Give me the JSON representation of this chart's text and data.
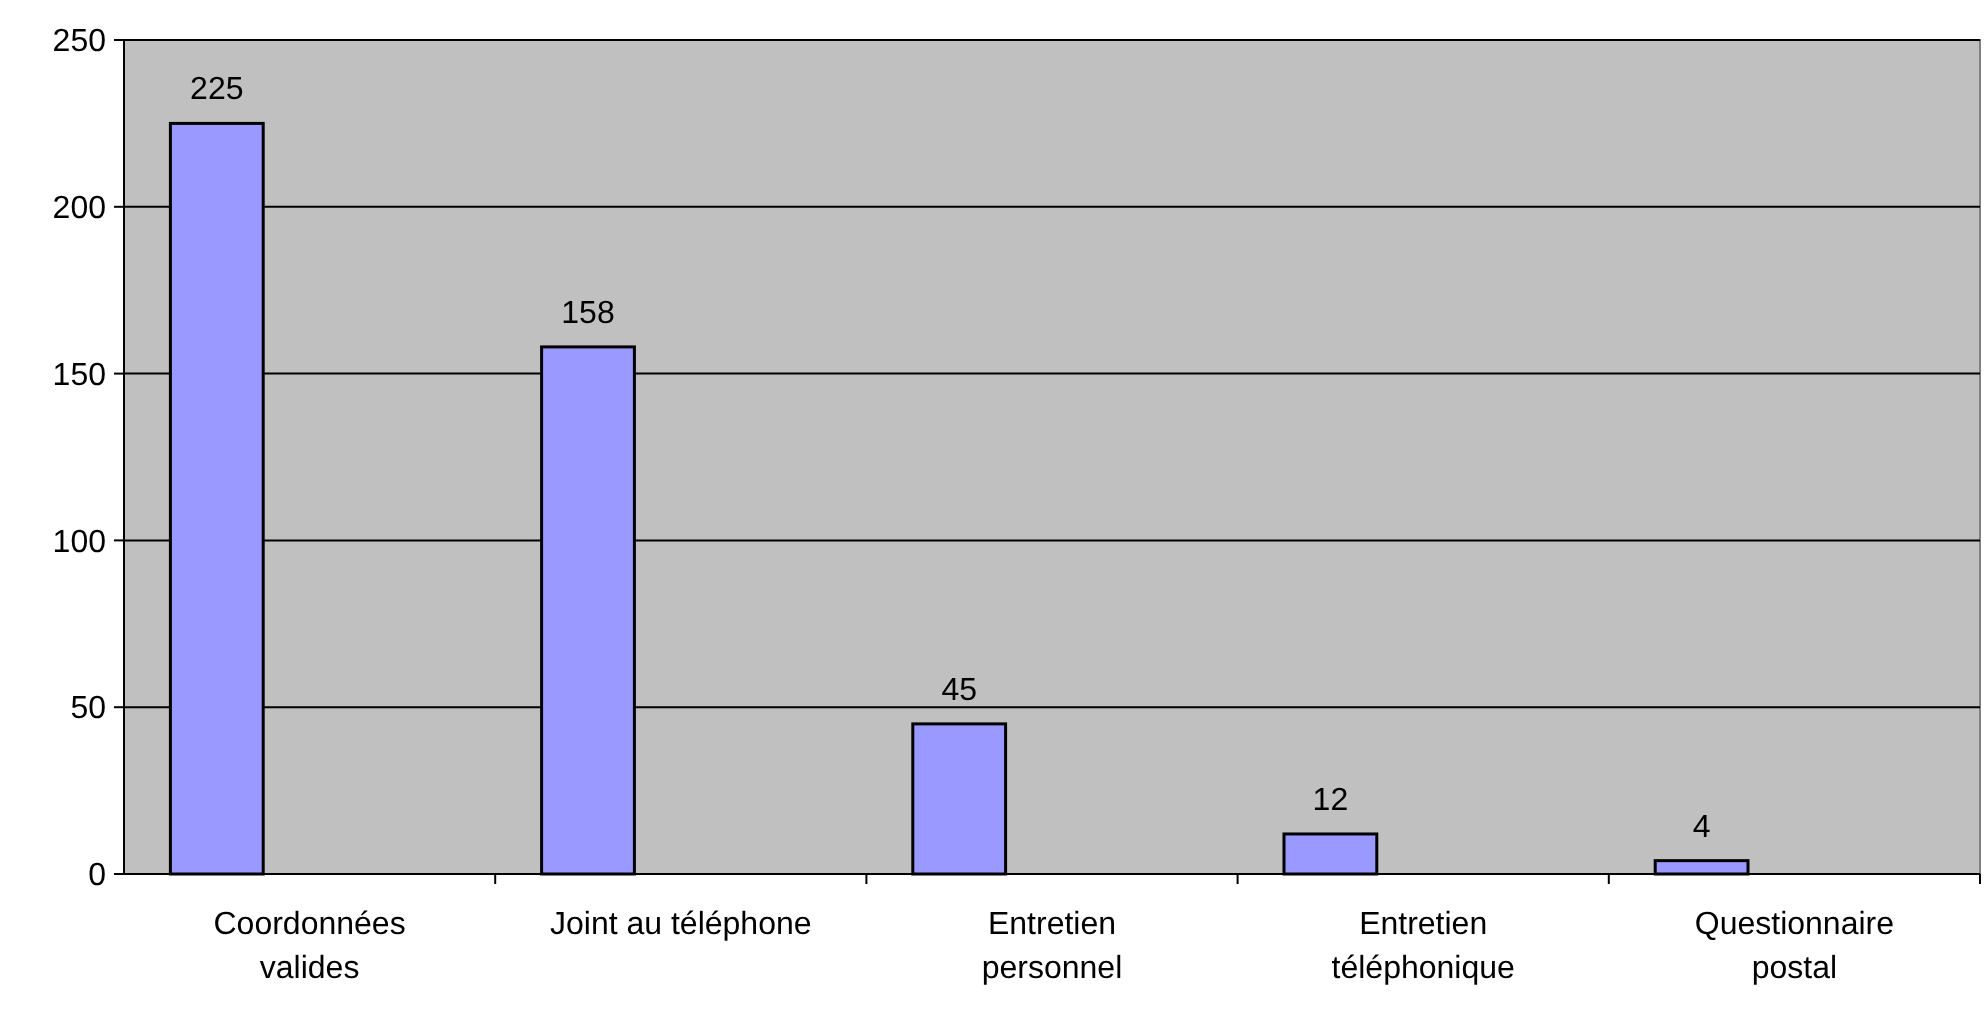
{
  "chart_data": {
    "type": "bar",
    "categories": [
      "Coordonnées valides",
      "Joint au téléphone",
      "Entretien personnel",
      "Entretien téléphonique",
      "Questionnaire postal"
    ],
    "values": [
      225,
      158,
      45,
      12,
      4
    ],
    "color": "#9999ff",
    "ylim": [
      0,
      250
    ],
    "yticks": [
      0,
      50,
      100,
      150,
      200,
      250
    ],
    "grid": "y",
    "data_labels": true
  }
}
